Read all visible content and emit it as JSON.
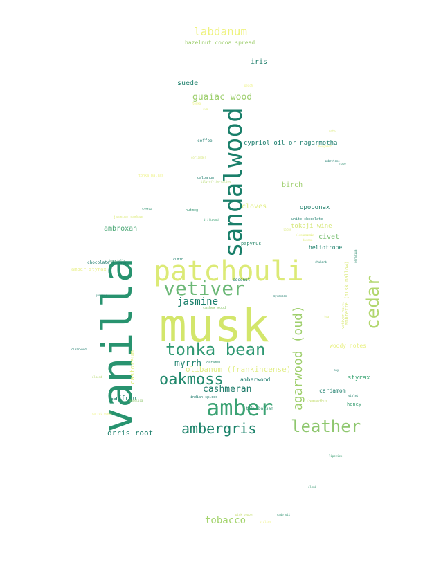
{
  "words": [
    {
      "text": "musk",
      "color": "#d3e66b"
    },
    {
      "text": "vanilla",
      "color": "#28936f"
    },
    {
      "text": "sandalwood",
      "color": "#1a7f6a"
    },
    {
      "text": "patchouli",
      "color": "#dcea76"
    },
    {
      "text": "vetiver",
      "color": "#6cb877"
    },
    {
      "text": "amber",
      "color": "#3ba273"
    },
    {
      "text": "tonka bean",
      "color": "#2e9872"
    },
    {
      "text": "oakmoss",
      "color": "#22896d"
    },
    {
      "text": "leather",
      "color": "#8ec76e"
    },
    {
      "text": "ambergris",
      "color": "#1d836b"
    },
    {
      "text": "cedar",
      "color": "#b2d76f"
    },
    {
      "text": "agarwood (oud)",
      "color": "#9fcf6d"
    },
    {
      "text": "jasmine",
      "color": "#1a7f6a"
    },
    {
      "text": "cashmeran",
      "color": "#227d6c"
    },
    {
      "text": "myrrh",
      "color": "#1b806c"
    },
    {
      "text": "labdanum",
      "color": "#eef27e"
    },
    {
      "text": "guaiac wood",
      "color": "#9ecf6f"
    },
    {
      "text": "tobacco",
      "color": "#a4d46e"
    },
    {
      "text": "orris root",
      "color": "#1f7f6c"
    },
    {
      "text": "olibanum (frankincense)",
      "color": "#e2ee88"
    },
    {
      "text": "suede",
      "color": "#1c7f6b"
    },
    {
      "text": "iris",
      "color": "#207f6c"
    },
    {
      "text": "cypriol oil or nagarmotha",
      "color": "#1a7c6c"
    },
    {
      "text": "birch",
      "color": "#9fcf6f"
    },
    {
      "text": "cloves",
      "color": "#e2ee84"
    },
    {
      "text": "opoponax",
      "color": "#1f7f6b"
    },
    {
      "text": "ambroxan",
      "color": "#4aa775"
    },
    {
      "text": "tokaji wine",
      "color": "#d6e77a"
    },
    {
      "text": "civet",
      "color": "#7bbf73"
    },
    {
      "text": "heliotrope",
      "color": "#1d806c"
    },
    {
      "text": "styrax",
      "color": "#3aa473"
    },
    {
      "text": "cardamom",
      "color": "#1c7e6c"
    },
    {
      "text": "saffron",
      "color": "#1f816c"
    },
    {
      "text": "amberwood",
      "color": "#1a7a6b"
    },
    {
      "text": "woody notes",
      "color": "#e8f080"
    },
    {
      "text": "honey",
      "color": "#3b9f73"
    },
    {
      "text": "hazelnut cocoa spread",
      "color": "#9fcf6f"
    },
    {
      "text": "amber styrax",
      "color": "#e9f08a"
    },
    {
      "text": "papyrus",
      "color": "#2c8a6e"
    },
    {
      "text": "chocolate flower",
      "color": "#1c7a6b"
    },
    {
      "text": "coconut",
      "color": "#1a7a6b"
    },
    {
      "text": "cumin",
      "color": "#1d7e6b"
    },
    {
      "text": "tolu balsam",
      "color": "#2f916f"
    },
    {
      "text": "indian spices",
      "color": "#1a7a6b"
    },
    {
      "text": "coffee",
      "color": "#1a7a6b"
    },
    {
      "text": "nutmeg",
      "color": "#2f926f"
    },
    {
      "text": "galbanum",
      "color": "#1a7a6b"
    },
    {
      "text": "white chocolate",
      "color": "#1c7d6b"
    },
    {
      "text": "driftwood",
      "color": "#3ba273"
    },
    {
      "text": "toffee",
      "color": "#2f926f"
    },
    {
      "text": "jasmine sambac",
      "color": "#dfec83"
    },
    {
      "text": "ambretone",
      "color": "#1a7a6b"
    },
    {
      "text": "rose",
      "color": "#2a8b6e"
    },
    {
      "text": "lily-of-the-valley",
      "color": "#b9db78"
    },
    {
      "text": "tonka pallas",
      "color": "#eef282"
    },
    {
      "text": "rhubarb",
      "color": "#1e7f6c"
    },
    {
      "text": "clearwood",
      "color": "#1a7a6b"
    },
    {
      "text": "juniper",
      "color": "#1d7f6b"
    },
    {
      "text": "cashew wood",
      "color": "#8ec86f"
    },
    {
      "text": "caramel",
      "color": "#2b8a6e"
    },
    {
      "text": "myrascan",
      "color": "#1a7a6b"
    },
    {
      "text": "hay",
      "color": "#1a7a6b"
    },
    {
      "text": "violet",
      "color": "#1f7f6c"
    },
    {
      "text": "elemi",
      "color": "#35966f"
    },
    {
      "text": "pink pepper",
      "color": "#c7e073"
    },
    {
      "text": "cade oil",
      "color": "#2f916f"
    },
    {
      "text": "lipstick",
      "color": "#3a9f73"
    },
    {
      "text": "almond",
      "color": "#b8da75"
    },
    {
      "text": "angelica",
      "color": "#8ec66e"
    },
    {
      "text": "immortelle",
      "color": "#3b9a70"
    },
    {
      "text": "praline",
      "color": "#eef282"
    },
    {
      "text": "mate",
      "color": "#dcea7e"
    },
    {
      "text": "vetiver haiti",
      "color": "#dcea7e"
    },
    {
      "text": "bergamot",
      "color": "#f0f38a"
    },
    {
      "text": "ambrette (musk mallow)",
      "color": "#dcea7e"
    },
    {
      "text": "geranium",
      "color": "#2c8a6e"
    },
    {
      "text": "carrot seeds",
      "color": "#eef282"
    },
    {
      "text": "coriander",
      "color": "#d6e77a"
    },
    {
      "text": "peach",
      "color": "#eef282"
    },
    {
      "text": "plum",
      "color": "#dcea7e"
    },
    {
      "text": "osmanthus",
      "color": "#c2dc74"
    },
    {
      "text": "rum",
      "color": "#e2ee84"
    },
    {
      "text": "tea",
      "color": "#dcea7e"
    },
    {
      "text": "tonka",
      "color": "#eef282"
    },
    {
      "text": "castoreum",
      "color": "#e2ee84"
    },
    {
      "text": "ambrox",
      "color": "#dcea7e"
    },
    {
      "text": "elemi resin",
      "color": "#e8f080"
    },
    {
      "text": "davana",
      "color": "#e2ee84"
    },
    {
      "text": "lotus",
      "color": "#dcea7e"
    }
  ]
}
